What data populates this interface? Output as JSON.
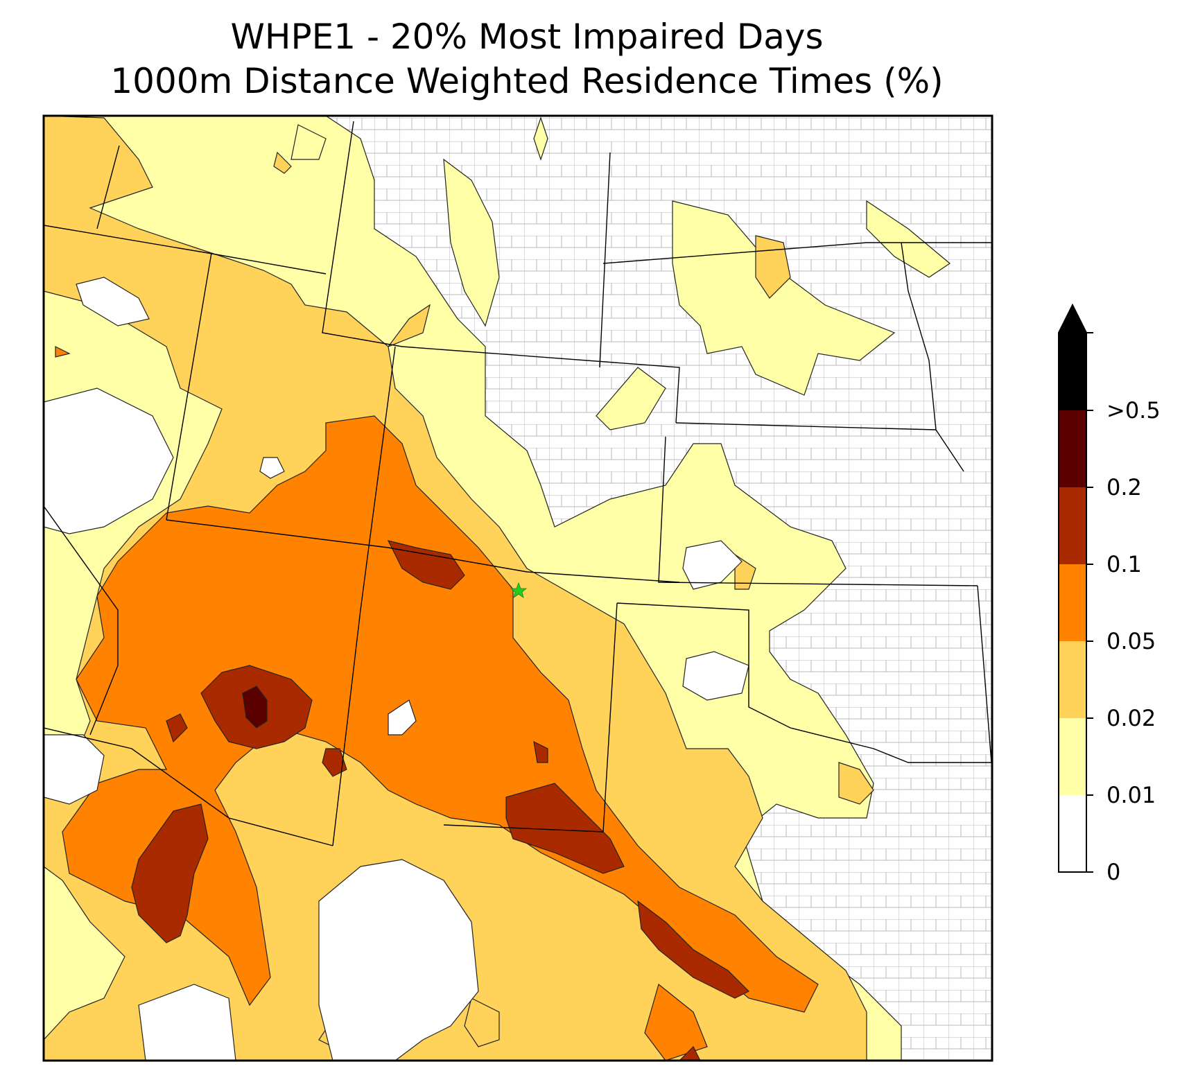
{
  "title_line1": "WHPE1 - 20% Most Impaired Days",
  "title_line2": "1000m Distance Weighted Residence Times (%)",
  "map": {
    "site_marker": "green-star-icon",
    "colors": {
      "0-0.01": "#ffffff",
      "0.01-0.02": "#ffffa8",
      "0.02-0.05": "#ffd25a",
      "0.05-0.1": "#ff8200",
      "0.1-0.2": "#aa2a00",
      "0.2-0.5": "#5a0000",
      ">0.5": "#000000",
      "state_lines": "#000000",
      "county_lines": "#a6a6a6"
    }
  },
  "colorbar": {
    "ticks": [
      "0",
      "0.01",
      "0.02",
      "0.05",
      "0.1",
      "0.2",
      ">0.5"
    ],
    "extend": "max"
  }
}
